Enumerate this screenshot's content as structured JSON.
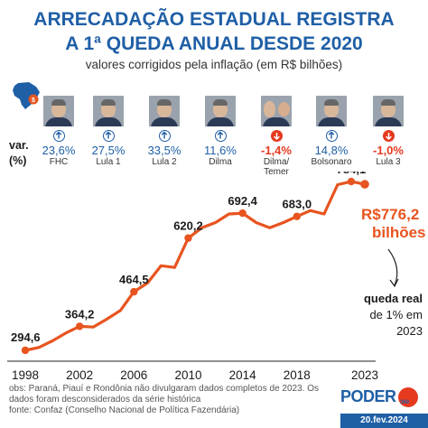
{
  "header": {
    "title_line1": "ARRECADAÇÃO ESTADUAL REGISTRA",
    "title_line2": "A 1ª QUEDA ANUAL DESDE 2020",
    "subtitle": "valores corrigidos pela inflação (em R$ bilhões)"
  },
  "var_label_line1": "var.",
  "var_label_line2": "(%)",
  "presidents": [
    {
      "name_line1": "FHC",
      "name_line2": "",
      "pct": "23,6%",
      "direction": "up"
    },
    {
      "name_line1": "Lula 1",
      "name_line2": "",
      "pct": "27,5%",
      "direction": "up"
    },
    {
      "name_line1": "Lula 2",
      "name_line2": "",
      "pct": "33,5%",
      "direction": "up"
    },
    {
      "name_line1": "Dilma",
      "name_line2": "",
      "pct": "11,6%",
      "direction": "up"
    },
    {
      "name_line1": "Dilma/",
      "name_line2": "Temer",
      "pct": "-1,4%",
      "direction": "down"
    },
    {
      "name_line1": "Bolsonaro",
      "name_line2": "",
      "pct": "14,8%",
      "direction": "up"
    },
    {
      "name_line1": "Lula 3",
      "name_line2": "",
      "pct": "-1,0%",
      "direction": "down"
    }
  ],
  "chart_data": {
    "type": "line",
    "title": "ARRECADAÇÃO ESTADUAL REGISTRA A 1ª QUEDA ANUAL DESDE 2020",
    "subtitle": "valores corrigidos pela inflação (em R$ bilhões)",
    "x": [
      1998,
      1999,
      2000,
      2001,
      2002,
      2003,
      2004,
      2005,
      2006,
      2007,
      2008,
      2009,
      2010,
      2011,
      2012,
      2013,
      2014,
      2015,
      2016,
      2017,
      2018,
      2019,
      2020,
      2021,
      2022,
      2023
    ],
    "series": [
      {
        "values": [
          294.6,
          303,
          322,
          345,
          364.2,
          362,
          385,
          410,
          464.5,
          490,
          540,
          535,
          620.2,
          650,
          665,
          690,
          692.4,
          665,
          650,
          665,
          683.0,
          700,
          690,
          775,
          784.1,
          776.2
        ]
      }
    ],
    "point_labels": [
      {
        "x": 1998,
        "text": "294,6"
      },
      {
        "x": 2002,
        "text": "364,2"
      },
      {
        "x": 2006,
        "text": "464,5"
      },
      {
        "x": 2010,
        "text": "620,2"
      },
      {
        "x": 2014,
        "text": "692,4"
      },
      {
        "x": 2018,
        "text": "683,0"
      },
      {
        "x": 2022,
        "text": "784,1"
      }
    ],
    "highlight": {
      "x": 2023,
      "line1": "R$776,2",
      "line2": "bilhões"
    },
    "xticks": [
      1998,
      2002,
      2006,
      2010,
      2014,
      2018,
      2023
    ],
    "xlim": [
      1998,
      2023
    ],
    "ylim": [
      250,
      800
    ],
    "grid": false,
    "line_color": "#e8541f",
    "highlight_color": "#e8541f"
  },
  "annotation": {
    "line1": "queda real",
    "line2": "de 1% em",
    "line3": "2023"
  },
  "footer": {
    "line1": "obs: Paraná, Piauí e Rondônia não divulgaram dados completos de 2023. Os",
    "line2": "dados foram desconsiderados da série histórica",
    "line3": "fonte: Confaz (Conselho Nacional de Política Fazendária)"
  },
  "brand": {
    "logo": "PODER",
    "logo_sub": "360",
    "date": "20.fev.2024"
  },
  "colors": {
    "title": "#1f5fa6",
    "accent": "#e8541f",
    "negative": "#e63a1f"
  }
}
